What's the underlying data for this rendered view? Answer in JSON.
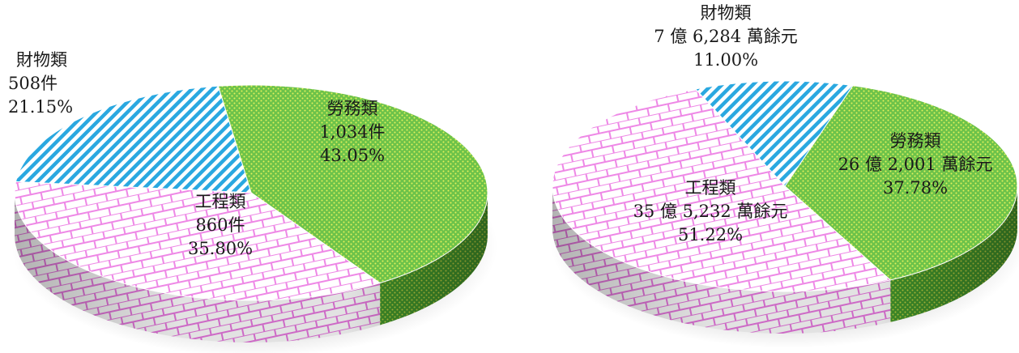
{
  "chart_data": [
    {
      "type": "pie",
      "slices": [
        {
          "category": "勞務類",
          "display_value": "1,034件",
          "percent_label": "43.05%",
          "value": 43.05,
          "color": "#6cc24a",
          "pattern": "dots"
        },
        {
          "category": "工程類",
          "display_value": "860件",
          "percent_label": "35.80%",
          "value": 35.8,
          "color": "#f090e6",
          "pattern": "bricks"
        },
        {
          "category": "財物類",
          "display_value": "508件",
          "percent_label": "21.15%",
          "value": 21.15,
          "color": "#2aa8e0",
          "pattern": "stripes"
        }
      ]
    },
    {
      "type": "pie",
      "slices": [
        {
          "category": "勞務類",
          "display_value": "26 億 2,001 萬餘元",
          "percent_label": "37.78%",
          "value": 37.78,
          "color": "#6cc24a",
          "pattern": "dots"
        },
        {
          "category": "工程類",
          "display_value": "35 億 5,232 萬餘元",
          "percent_label": "51.22%",
          "value": 51.22,
          "color": "#f090e6",
          "pattern": "bricks"
        },
        {
          "category": "財物類",
          "display_value": "7 億 6,284 萬餘元",
          "percent_label": "11.00%",
          "value": 11.0,
          "color": "#2aa8e0",
          "pattern": "stripes"
        }
      ]
    }
  ]
}
